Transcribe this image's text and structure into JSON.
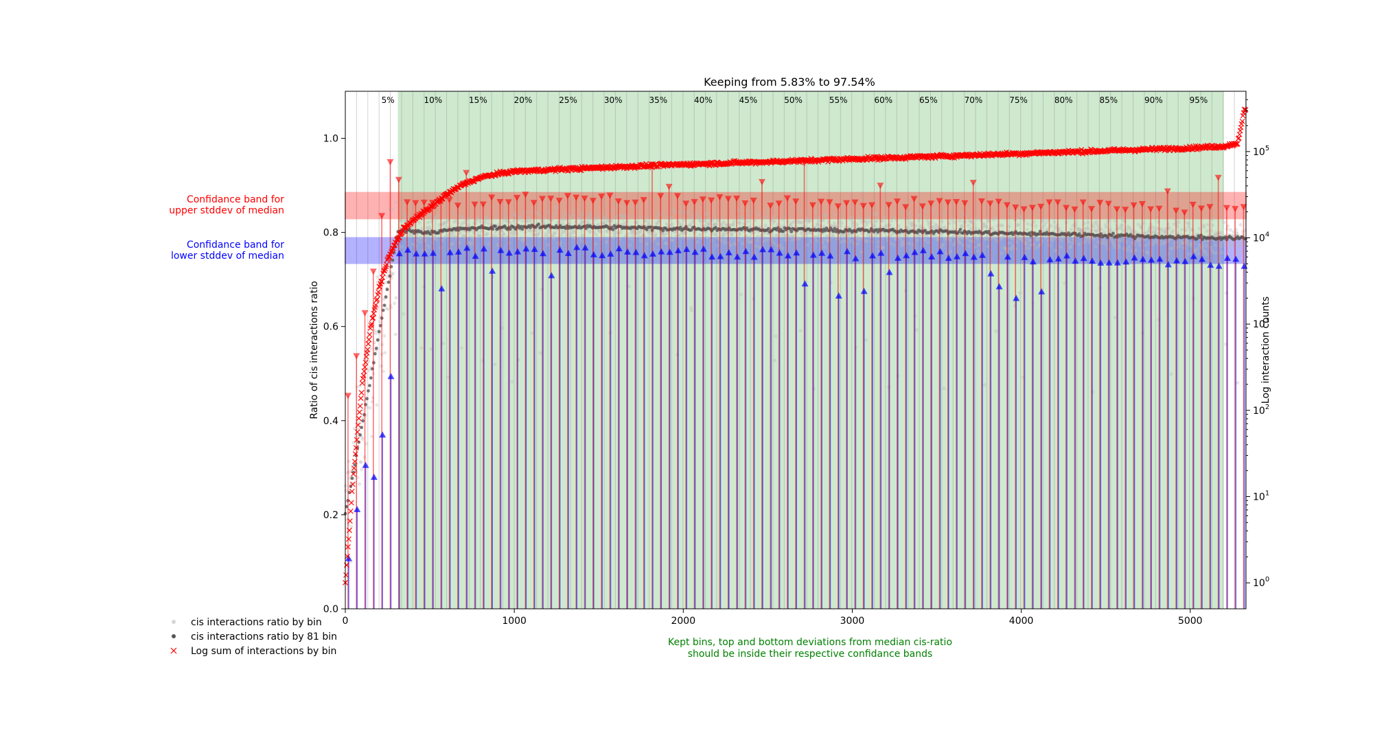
{
  "chart_data": {
    "type": "scatter",
    "title": "Keeping from 5.83% to 97.54%",
    "xlabel": "",
    "ylabel": "Ratio of cis interactions ratio",
    "y2label": "Log interaction counts",
    "xlim": [
      0,
      5330
    ],
    "ylim": [
      0,
      1.1
    ],
    "y2_scale": "log",
    "y2lim": [
      0.5,
      500000
    ],
    "x_ticks": [
      "0",
      "1000",
      "2000",
      "3000",
      "4000",
      "5000"
    ],
    "y_ticks": [
      "0.0",
      "0.2",
      "0.4",
      "0.6",
      "0.8",
      "1.0"
    ],
    "y2_ticks": [
      {
        "base": "10",
        "exp": "0"
      },
      {
        "base": "10",
        "exp": "1"
      },
      {
        "base": "10",
        "exp": "2"
      },
      {
        "base": "10",
        "exp": "3"
      },
      {
        "base": "10",
        "exp": "4"
      },
      {
        "base": "10",
        "exp": "5"
      }
    ],
    "percent_labels": [
      "5%",
      "10%",
      "15%",
      "20%",
      "25%",
      "30%",
      "35%",
      "40%",
      "45%",
      "50%",
      "55%",
      "60%",
      "65%",
      "70%",
      "75%",
      "80%",
      "85%",
      "90%",
      "95%"
    ],
    "kept_range": {
      "start": 311,
      "end": 5199
    },
    "upper_band": [
      0.828,
      0.886
    ],
    "lower_band": [
      0.733,
      0.79
    ],
    "upper_band_label": "Confidance band for\nupper stddev of median",
    "lower_band_label": "Confidance band for\nlower stddev of median",
    "note": "Kept bins, top and bottom deviations from median cis-ratio\nshould be inside their respective confidance bands",
    "legend": [
      "cis interactions ratio by bin",
      "cis interactions ratio by 81 bin",
      "Log sum of interactions by bin"
    ],
    "legend_position": "lower-left",
    "grid": false,
    "colors": {
      "kept": "#2ca02c",
      "upper": "#ff0000",
      "lower": "#0000ff",
      "points": "#bbbbbb",
      "median": "#555555",
      "note": "#008000"
    },
    "series": [
      {
        "name": "Log sum of interactions by bin",
        "axis": "y2",
        "x": [
          0,
          50,
          100,
          150,
          200,
          250,
          300,
          350,
          400,
          500,
          600,
          700,
          800,
          900,
          1000,
          1500,
          2000,
          2500,
          3000,
          3500,
          4000,
          4500,
          5000,
          5200,
          5280,
          5320
        ],
        "y": [
          1,
          20,
          200,
          900,
          2600,
          5500,
          9000,
          13000,
          16000,
          22000,
          32000,
          42000,
          50000,
          55000,
          59000,
          65000,
          71000,
          76000,
          82000,
          88000,
          95000,
          102000,
          110000,
          115000,
          125000,
          300000
        ]
      },
      {
        "name": "cis interactions ratio by 81 bin",
        "x": [
          311,
          500,
          700,
          900,
          1100,
          1300,
          1500,
          1700,
          1900,
          2100,
          2300,
          2500,
          2700,
          2900,
          3100,
          3300,
          3500,
          3700,
          3900,
          4100,
          4300,
          4500,
          4700,
          4900,
          5100,
          5300
        ],
        "y": [
          0.805,
          0.8,
          0.808,
          0.81,
          0.812,
          0.812,
          0.811,
          0.81,
          0.808,
          0.808,
          0.807,
          0.806,
          0.806,
          0.804,
          0.804,
          0.803,
          0.802,
          0.8,
          0.798,
          0.797,
          0.796,
          0.794,
          0.792,
          0.79,
          0.789,
          0.787
        ]
      }
    ]
  }
}
